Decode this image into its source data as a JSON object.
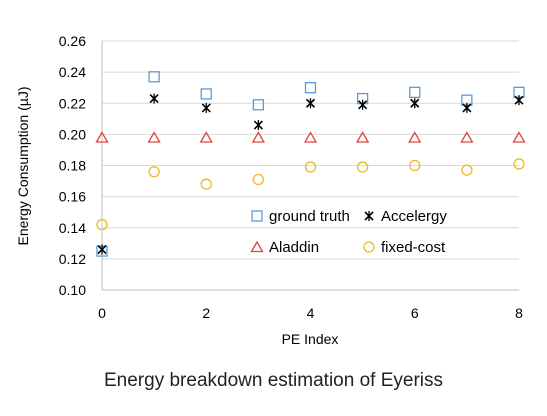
{
  "caption": "Energy breakdown estimation of Eyeriss",
  "chart_data": {
    "type": "scatter",
    "xlabel": "PE Index",
    "ylabel": "Energy Consumption (µJ)",
    "xlim": [
      0,
      8
    ],
    "ylim": [
      0.1,
      0.26
    ],
    "xticks": [
      "0",
      "2",
      "4",
      "6",
      "8"
    ],
    "yticks": [
      "0.10",
      "0.12",
      "0.14",
      "0.16",
      "0.18",
      "0.20",
      "0.22",
      "0.24",
      "0.26"
    ],
    "grid": "horizontal",
    "legend_position": "lower-right, inside plot, two columns",
    "x": [
      0,
      1,
      2,
      3,
      4,
      5,
      6,
      7,
      8
    ],
    "series": [
      {
        "name": "ground truth",
        "marker": "square",
        "color": "#5B9BD5",
        "values": [
          0.125,
          0.237,
          0.226,
          0.219,
          0.23,
          0.223,
          0.227,
          0.222,
          0.227
        ]
      },
      {
        "name": "Accelergy",
        "marker": "star",
        "color": "#000000",
        "values": [
          0.126,
          0.223,
          0.217,
          0.206,
          0.22,
          0.219,
          0.22,
          0.217,
          0.222
        ]
      },
      {
        "name": "Aladdin",
        "marker": "triangle",
        "color": "#E0443A",
        "values": [
          0.198,
          0.198,
          0.198,
          0.198,
          0.198,
          0.198,
          0.198,
          0.198,
          0.198
        ]
      },
      {
        "name": "fixed-cost",
        "marker": "circle",
        "color": "#F2B622",
        "values": [
          0.142,
          0.176,
          0.168,
          0.171,
          0.179,
          0.179,
          0.18,
          0.177,
          0.181
        ]
      }
    ]
  }
}
